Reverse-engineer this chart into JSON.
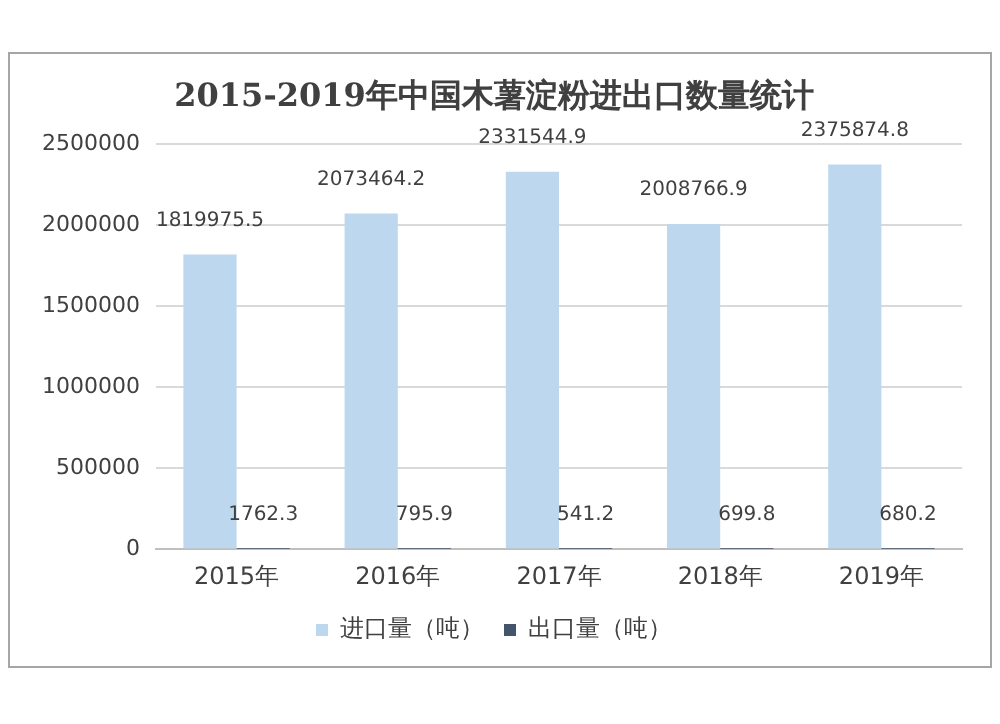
{
  "chart_data": {
    "type": "bar",
    "title": "2015-2019年中国木薯淀粉进出口数量统计",
    "categories": [
      "2015年",
      "2016年",
      "2017年",
      "2018年",
      "2019年"
    ],
    "series": [
      {
        "name": "进口量（吨）",
        "color": "#bdd7ee",
        "values": [
          1819975.5,
          2073464.2,
          2331544.9,
          2008766.9,
          2375874.8
        ]
      },
      {
        "name": "出口量（吨）",
        "color": "#44546a",
        "values": [
          1762.3,
          795.9,
          541.2,
          699.8,
          680.2
        ]
      }
    ],
    "ylim": [
      0,
      2500000
    ],
    "yticks": [
      0,
      500000,
      1000000,
      1500000,
      2000000,
      2500000
    ],
    "grid": "y",
    "legend": "bottom",
    "data_labels": true
  }
}
